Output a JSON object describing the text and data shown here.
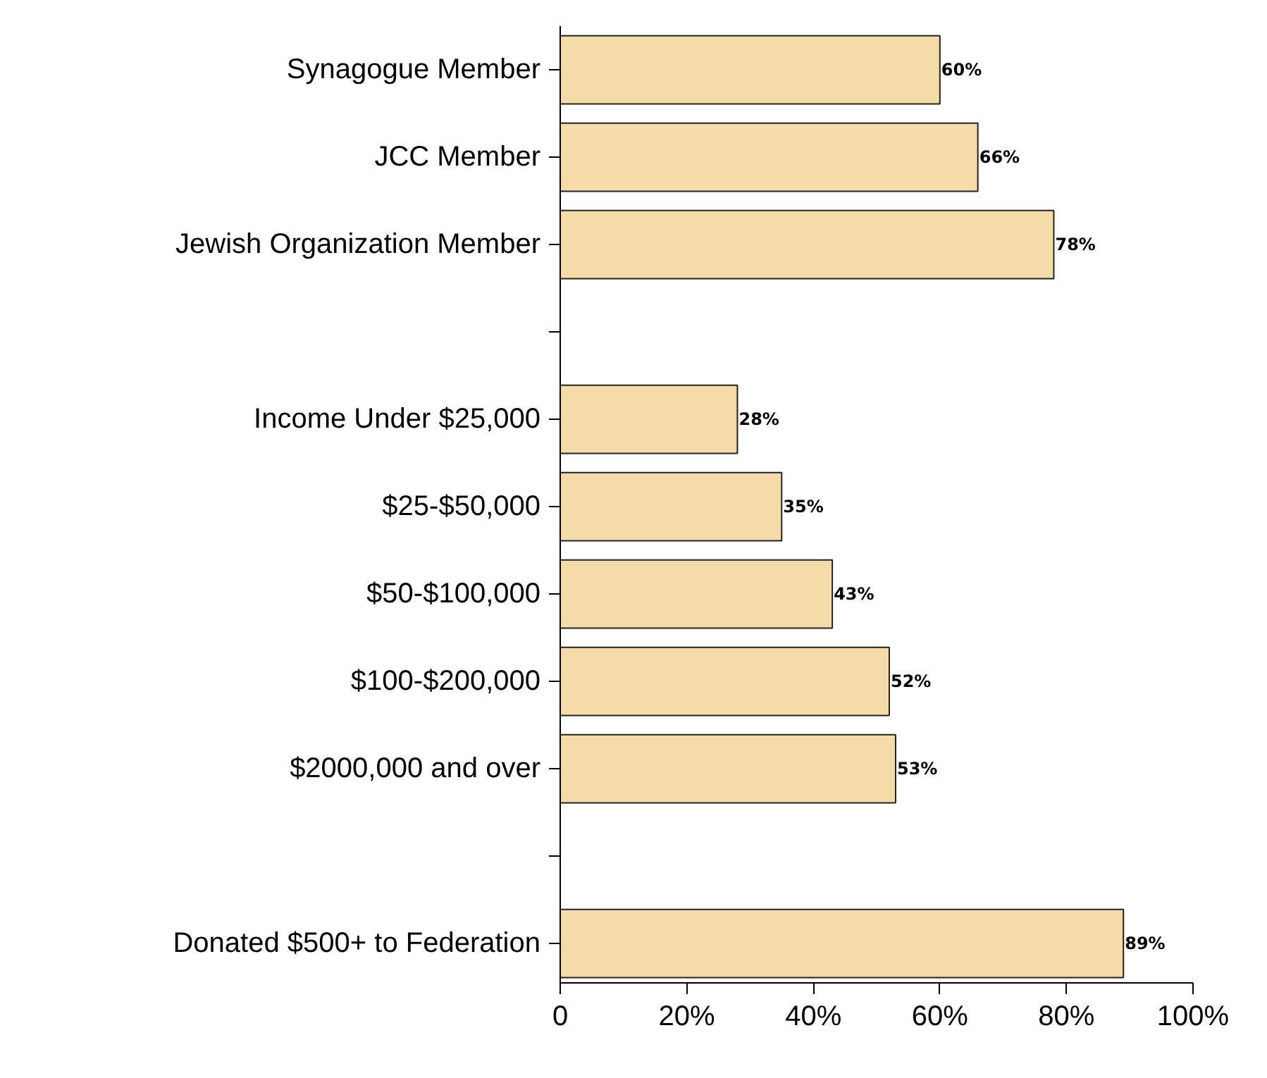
{
  "chart_data": {
    "type": "bar",
    "orientation": "horizontal",
    "categories": [
      "Synagogue Member",
      "JCC Member",
      "Jewish Organization Member",
      null,
      "Income Under $25,000",
      "$25-$50,000",
      "$50-$100,000",
      "$100-$200,000",
      "$2000,000 and over",
      null,
      "Donated $500+ to Federation"
    ],
    "values": [
      60,
      66,
      78,
      null,
      28,
      35,
      43,
      52,
      53,
      null,
      89
    ],
    "value_labels": [
      "60%",
      "66%",
      "78%",
      null,
      "28%",
      "35%",
      "43%",
      "52%",
      "53%",
      null,
      "89%"
    ],
    "color": "#f5dba8",
    "xlim": [
      0,
      100
    ],
    "xticks": [
      0,
      {
        "value": 20,
        "label": "20%"
      },
      {
        "value": 40,
        "label": "40%"
      },
      {
        "value": 60,
        "label": "60%"
      },
      {
        "value": 80,
        "label": "80%"
      },
      {
        "value": 100,
        "label": "100%"
      }
    ],
    "grid": false
  }
}
